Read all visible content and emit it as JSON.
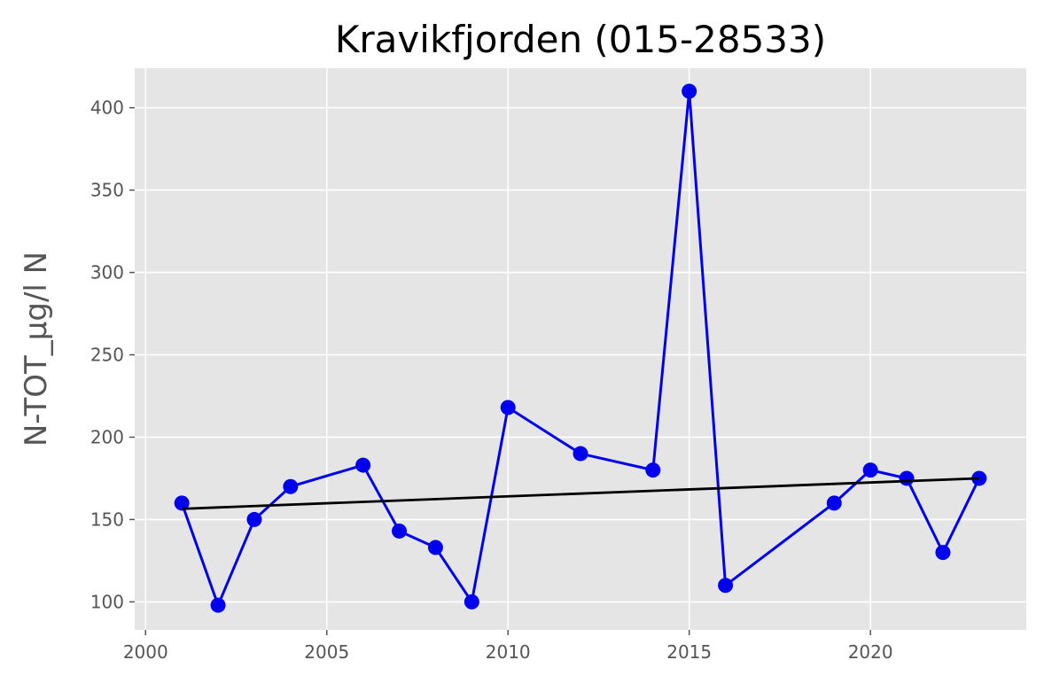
{
  "chart_data": {
    "type": "line",
    "title": "Kravikfjorden (015-28533)",
    "xlabel": "",
    "ylabel": "N-TOT_µg/l N",
    "xlim": [
      1999.7,
      2024.3
    ],
    "ylim": [
      83,
      424
    ],
    "xticks": [
      2000,
      2005,
      2010,
      2015,
      2020
    ],
    "yticks": [
      100,
      150,
      200,
      250,
      300,
      350,
      400
    ],
    "grid": true,
    "background": "#e5e5e5",
    "series": [
      {
        "color": "#0000ee",
        "marker": "circle",
        "x": [
          2001,
          2002,
          2003,
          2004,
          2006,
          2007,
          2008,
          2009,
          2010,
          2012,
          2014,
          2015,
          2016,
          2019,
          2020,
          2021,
          2022,
          2023
        ],
        "y": [
          160,
          98,
          150,
          170,
          183,
          143,
          133,
          100,
          218,
          190,
          180,
          410,
          110,
          160,
          180,
          175,
          130,
          175
        ]
      },
      {
        "color": "#000000",
        "marker": "none",
        "x": [
          2001,
          2023
        ],
        "y": [
          156.5,
          175
        ]
      }
    ]
  }
}
